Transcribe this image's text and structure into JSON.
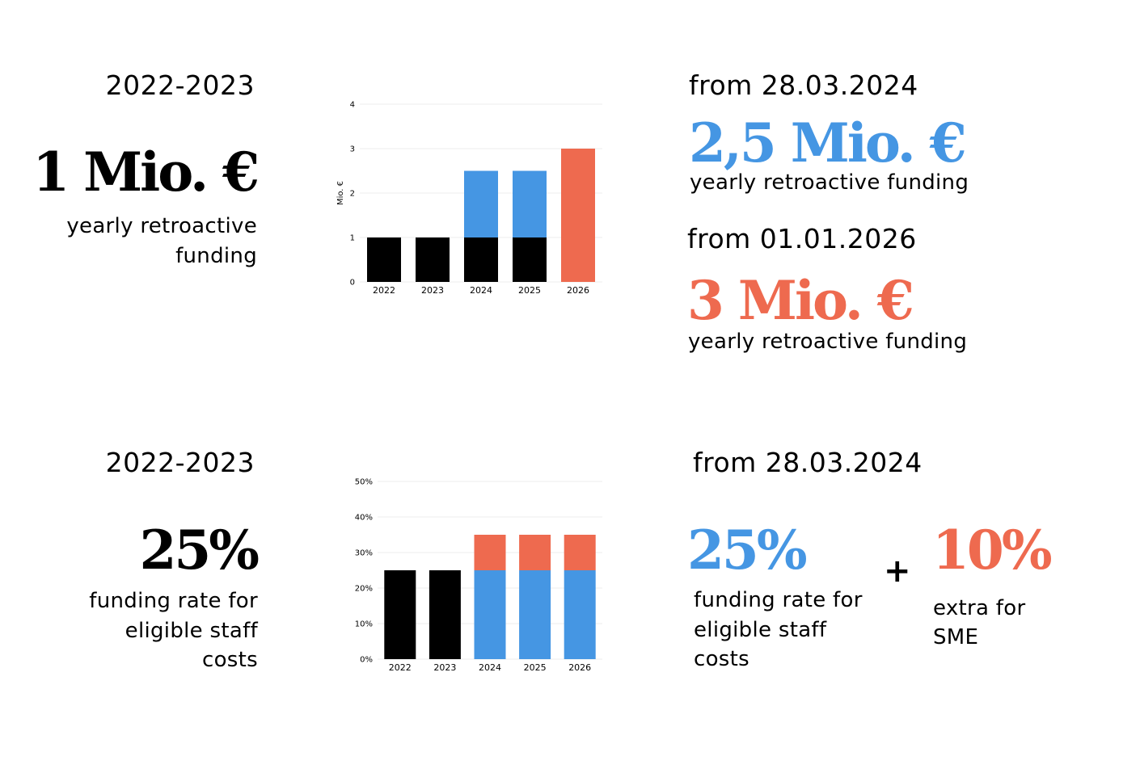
{
  "colors": {
    "black": "#000000",
    "blue": "#4596e3",
    "orange": "#ee6a4f",
    "grid": "#eeeeee"
  },
  "top": {
    "left": {
      "period": "2022-2023",
      "amount": "1 Mio. €",
      "desc_line1": "yearly retroactive",
      "desc_line2": "funding"
    },
    "right": {
      "first": {
        "period": "from 28.03.2024",
        "amount": "2,5 Mio. €",
        "desc": "yearly retroactive funding"
      },
      "second": {
        "period": "from 01.01.2026",
        "amount": "3 Mio. €",
        "desc": "yearly retroactive funding"
      }
    }
  },
  "bottom": {
    "left": {
      "period": "2022-2023",
      "rate": "25%",
      "desc_line1": "funding rate for",
      "desc_line2": "eligible staff",
      "desc_line3": "costs"
    },
    "right": {
      "period": "from 28.03.2024",
      "rate": "25%",
      "desc_line1": "funding rate for",
      "desc_line2": "eligible staff",
      "desc_line3": "costs",
      "plus": "+",
      "extra_rate": "10%",
      "extra_line1": "extra for",
      "extra_line2": "SME"
    }
  },
  "chart_data": [
    {
      "type": "bar",
      "stacked": true,
      "categories": [
        "2022",
        "2023",
        "2024",
        "2025",
        "2026"
      ],
      "series": [
        {
          "values": [
            1,
            1,
            1,
            1,
            0
          ],
          "color": "#000000"
        },
        {
          "values": [
            0,
            0,
            1.5,
            1.5,
            0
          ],
          "color": "#4596e3"
        },
        {
          "values": [
            0,
            0,
            0,
            0,
            3
          ],
          "color": "#ee6a4f"
        }
      ],
      "ylabel": "Mio. €",
      "ylim": [
        0,
        4
      ],
      "yticks": [
        "0",
        "1",
        "2",
        "3",
        "4"
      ],
      "grid": true
    },
    {
      "type": "bar",
      "stacked": true,
      "categories": [
        "2022",
        "2023",
        "2024",
        "2025",
        "2026"
      ],
      "series": [
        {
          "values": [
            25,
            25,
            0,
            0,
            0
          ],
          "color": "#000000"
        },
        {
          "values": [
            0,
            0,
            25,
            25,
            25
          ],
          "color": "#4596e3"
        },
        {
          "values": [
            0,
            0,
            10,
            10,
            10
          ],
          "color": "#ee6a4f"
        }
      ],
      "ylabel": "",
      "ylim": [
        0,
        50
      ],
      "yticks": [
        "0%",
        "10%",
        "20%",
        "30%",
        "40%",
        "50%"
      ],
      "grid": true
    }
  ]
}
